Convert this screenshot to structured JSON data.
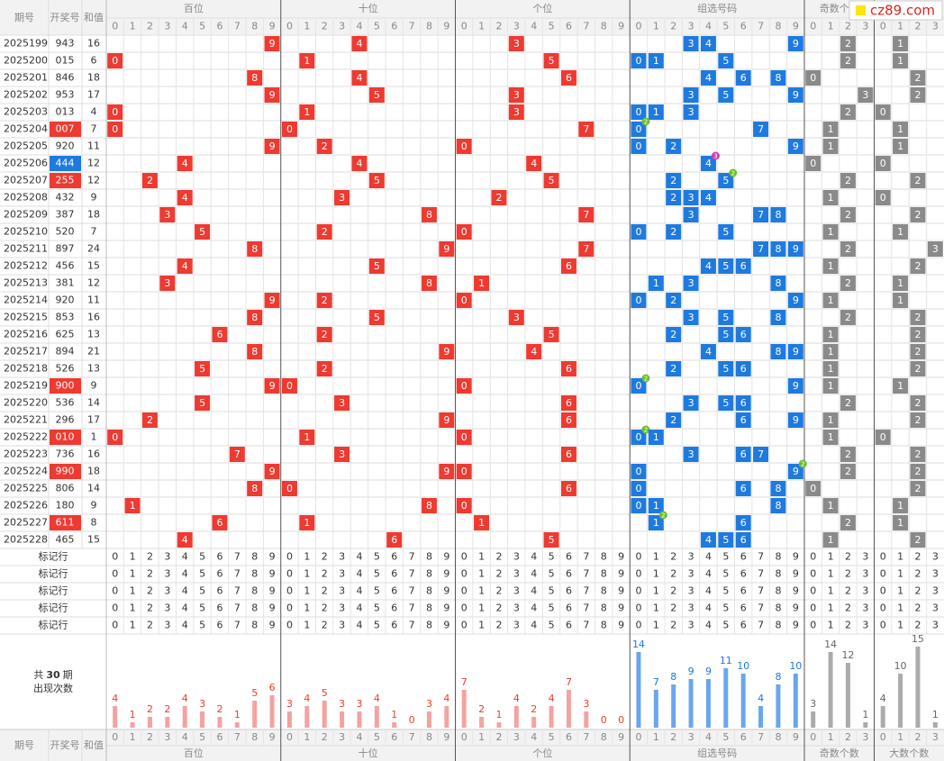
{
  "header": {
    "period": "期号",
    "number": "开奖号",
    "sum": "和值",
    "groups": [
      "百位",
      "十位",
      "个位",
      "组选号码",
      "奇数个数",
      "大数个数"
    ]
  },
  "digits": {
    "pos": [
      0,
      1,
      2,
      3,
      4,
      5,
      6,
      7,
      8,
      9
    ],
    "count": [
      0,
      1,
      2,
      3
    ]
  },
  "rows": [
    {
      "period": "2025199",
      "number": "943",
      "digits": [
        9,
        4,
        3
      ],
      "sum": 16,
      "odd": 2,
      "big": 1
    },
    {
      "period": "2025200",
      "number": "015",
      "digits": [
        0,
        1,
        5
      ],
      "sum": 6,
      "odd": 2,
      "big": 1
    },
    {
      "period": "2025201",
      "number": "846",
      "digits": [
        8,
        4,
        6
      ],
      "sum": 18,
      "odd": 0,
      "big": 2
    },
    {
      "period": "2025202",
      "number": "953",
      "digits": [
        9,
        5,
        3
      ],
      "sum": 17,
      "odd": 3,
      "big": 2
    },
    {
      "period": "2025203",
      "number": "013",
      "digits": [
        0,
        1,
        3
      ],
      "sum": 4,
      "odd": 2,
      "big": 0
    },
    {
      "period": "2025204",
      "number": "007",
      "digits": [
        0,
        0,
        7
      ],
      "sum": 7,
      "odd": 1,
      "big": 1,
      "repeat": 2
    },
    {
      "period": "2025205",
      "number": "920",
      "digits": [
        9,
        2,
        0
      ],
      "sum": 11,
      "odd": 1,
      "big": 1
    },
    {
      "period": "2025206",
      "number": "444",
      "digits": [
        4,
        4,
        4
      ],
      "sum": 12,
      "odd": 0,
      "big": 0,
      "repeat": 3
    },
    {
      "period": "2025207",
      "number": "255",
      "digits": [
        2,
        5,
        5
      ],
      "sum": 12,
      "odd": 2,
      "big": 2,
      "repeat": 2
    },
    {
      "period": "2025208",
      "number": "432",
      "digits": [
        4,
        3,
        2
      ],
      "sum": 9,
      "odd": 1,
      "big": 0
    },
    {
      "period": "2025209",
      "number": "387",
      "digits": [
        3,
        8,
        7
      ],
      "sum": 18,
      "odd": 2,
      "big": 2
    },
    {
      "period": "2025210",
      "number": "520",
      "digits": [
        5,
        2,
        0
      ],
      "sum": 7,
      "odd": 1,
      "big": 1
    },
    {
      "period": "2025211",
      "number": "897",
      "digits": [
        8,
        9,
        7
      ],
      "sum": 24,
      "odd": 2,
      "big": 3
    },
    {
      "period": "2025212",
      "number": "456",
      "digits": [
        4,
        5,
        6
      ],
      "sum": 15,
      "odd": 1,
      "big": 2
    },
    {
      "period": "2025213",
      "number": "381",
      "digits": [
        3,
        8,
        1
      ],
      "sum": 12,
      "odd": 2,
      "big": 1
    },
    {
      "period": "2025214",
      "number": "920",
      "digits": [
        9,
        2,
        0
      ],
      "sum": 11,
      "odd": 1,
      "big": 1
    },
    {
      "period": "2025215",
      "number": "853",
      "digits": [
        8,
        5,
        3
      ],
      "sum": 16,
      "odd": 2,
      "big": 2
    },
    {
      "period": "2025216",
      "number": "625",
      "digits": [
        6,
        2,
        5
      ],
      "sum": 13,
      "odd": 1,
      "big": 2
    },
    {
      "period": "2025217",
      "number": "894",
      "digits": [
        8,
        9,
        4
      ],
      "sum": 21,
      "odd": 1,
      "big": 2
    },
    {
      "period": "2025218",
      "number": "526",
      "digits": [
        5,
        2,
        6
      ],
      "sum": 13,
      "odd": 1,
      "big": 2
    },
    {
      "period": "2025219",
      "number": "900",
      "digits": [
        9,
        0,
        0
      ],
      "sum": 9,
      "odd": 1,
      "big": 1,
      "repeat": 2
    },
    {
      "period": "2025220",
      "number": "536",
      "digits": [
        5,
        3,
        6
      ],
      "sum": 14,
      "odd": 2,
      "big": 2
    },
    {
      "period": "2025221",
      "number": "296",
      "digits": [
        2,
        9,
        6
      ],
      "sum": 17,
      "odd": 1,
      "big": 2
    },
    {
      "period": "2025222",
      "number": "010",
      "digits": [
        0,
        1,
        0
      ],
      "sum": 1,
      "odd": 1,
      "big": 0,
      "repeat": 2
    },
    {
      "period": "2025223",
      "number": "736",
      "digits": [
        7,
        3,
        6
      ],
      "sum": 16,
      "odd": 2,
      "big": 2
    },
    {
      "period": "2025224",
      "number": "990",
      "digits": [
        9,
        9,
        0
      ],
      "sum": 18,
      "odd": 2,
      "big": 2,
      "repeat": 2
    },
    {
      "period": "2025225",
      "number": "806",
      "digits": [
        8,
        0,
        6
      ],
      "sum": 14,
      "odd": 0,
      "big": 2
    },
    {
      "period": "2025226",
      "number": "180",
      "digits": [
        1,
        8,
        0
      ],
      "sum": 9,
      "odd": 1,
      "big": 1
    },
    {
      "period": "2025227",
      "number": "611",
      "digits": [
        6,
        1,
        1
      ],
      "sum": 8,
      "odd": 2,
      "big": 1,
      "repeat": 2
    },
    {
      "period": "2025228",
      "number": "465",
      "digits": [
        4,
        6,
        5
      ],
      "sum": 15,
      "odd": 1,
      "big": 2
    }
  ],
  "marker_rows": [
    "标记行",
    "标记行",
    "标记行",
    "标记行",
    "标记行"
  ],
  "stats": {
    "total_prefix": "共",
    "total": 30,
    "total_suffix": "期",
    "label": "出现次数",
    "counts": [
      [
        4,
        1,
        2,
        2,
        4,
        3,
        2,
        1,
        5,
        6
      ],
      [
        3,
        4,
        5,
        3,
        3,
        4,
        1,
        0,
        3,
        4
      ],
      [
        7,
        2,
        1,
        4,
        2,
        4,
        7,
        3,
        0,
        0
      ],
      [
        14,
        7,
        8,
        9,
        9,
        11,
        10,
        4,
        8,
        10
      ],
      [
        3,
        14,
        12,
        1
      ],
      [
        4,
        10,
        15,
        1
      ]
    ]
  },
  "colors": {
    "position": "#ee3a31",
    "group": "#1f7ae0",
    "count": "#8a8a8a",
    "pair": "#ee3a31",
    "triple": "#1f7ae0",
    "badge_double": "#6cbf2a",
    "badge_triple": "#d43bb4",
    "bars": [
      "#f3a3a1",
      "#f3a3a1",
      "#f3a3a1",
      "#6aa6ee",
      "#ababab",
      "#ababab"
    ],
    "bar_labels": [
      "#e8402f",
      "#e8402f",
      "#e8402f",
      "#1f78dc",
      "#666666",
      "#666666"
    ]
  },
  "brand": "cz89.com"
}
